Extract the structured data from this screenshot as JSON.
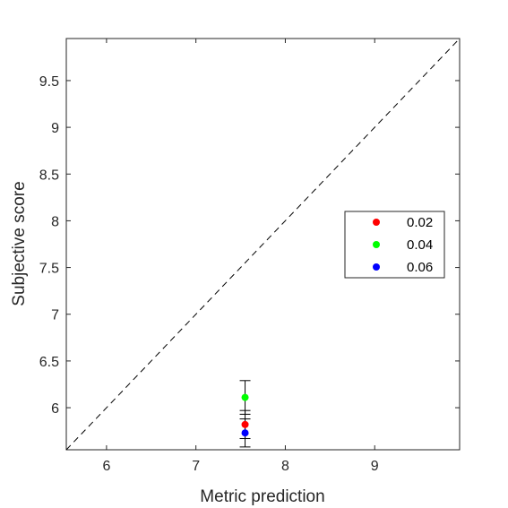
{
  "chart_data": {
    "type": "scatter",
    "title": "",
    "xlabel": "Metric prediction",
    "ylabel": "Subjective score",
    "xlim": [
      5.55,
      9.95
    ],
    "ylim": [
      5.55,
      9.95
    ],
    "xticks": [
      6,
      7,
      8,
      9
    ],
    "xtick_labels": [
      "6",
      "7",
      "8",
      "9"
    ],
    "yticks": [
      6,
      6.5,
      7,
      7.5,
      8,
      8.5,
      9,
      9.5
    ],
    "ytick_labels": [
      "6",
      "6.5",
      "7",
      "7.5",
      "8",
      "8.5",
      "9",
      "9.5"
    ],
    "grid": false,
    "reference_line": "y = x (dashed)",
    "legend_position": "right",
    "series": [
      {
        "name": "0.02",
        "color": "#ff0000",
        "x": [
          7.55
        ],
        "y": [
          5.82
        ],
        "err_low": [
          0.15
        ],
        "err_high": [
          0.15
        ]
      },
      {
        "name": "0.04",
        "color": "#00ff00",
        "x": [
          7.55
        ],
        "y": [
          6.11
        ],
        "err_low": [
          0.18
        ],
        "err_high": [
          0.18
        ]
      },
      {
        "name": "0.06",
        "color": "#0000ff",
        "x": [
          7.55
        ],
        "y": [
          5.73
        ],
        "err_low": [
          0.15
        ],
        "err_high": [
          0.15
        ]
      }
    ]
  }
}
